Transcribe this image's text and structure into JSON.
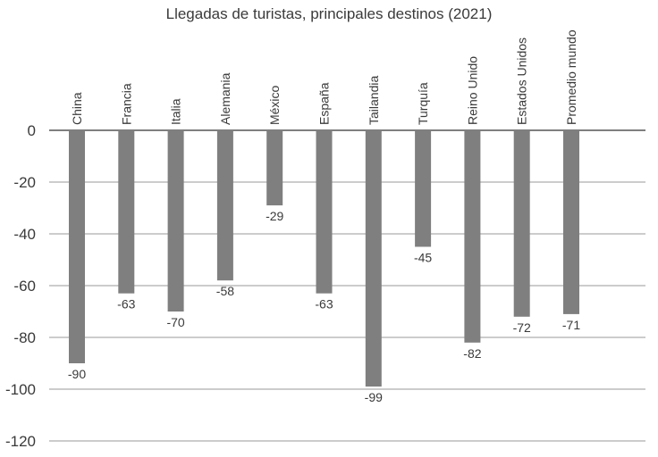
{
  "chart_data": {
    "type": "bar",
    "title": "Llegadas de turistas, principales destinos (2021)",
    "categories": [
      "China",
      "Francia",
      "Italia",
      "Alemania",
      "México",
      "España",
      "Tailandia",
      "Turquía",
      "Reino Unido",
      "Estados Unidos",
      "Promedio mundo"
    ],
    "values": [
      -90,
      -63,
      -70,
      -58,
      -29,
      -63,
      -99,
      -45,
      -82,
      -72,
      -71
    ],
    "data_labels": [
      "-90",
      "-63",
      "-70",
      "-58",
      "-29",
      "-63",
      "-99",
      "-45",
      "-82",
      "-72",
      "-71"
    ],
    "yticks": [
      "0",
      "-20",
      "-40",
      "-60",
      "-80",
      "-100",
      "-120"
    ],
    "ytick_values": [
      0,
      -20,
      -40,
      -60,
      -80,
      -100,
      -120
    ],
    "ylim": [
      -120,
      0
    ],
    "xlabel": "",
    "ylabel": "",
    "grid": true,
    "bar_color": "#7f7f7f"
  }
}
